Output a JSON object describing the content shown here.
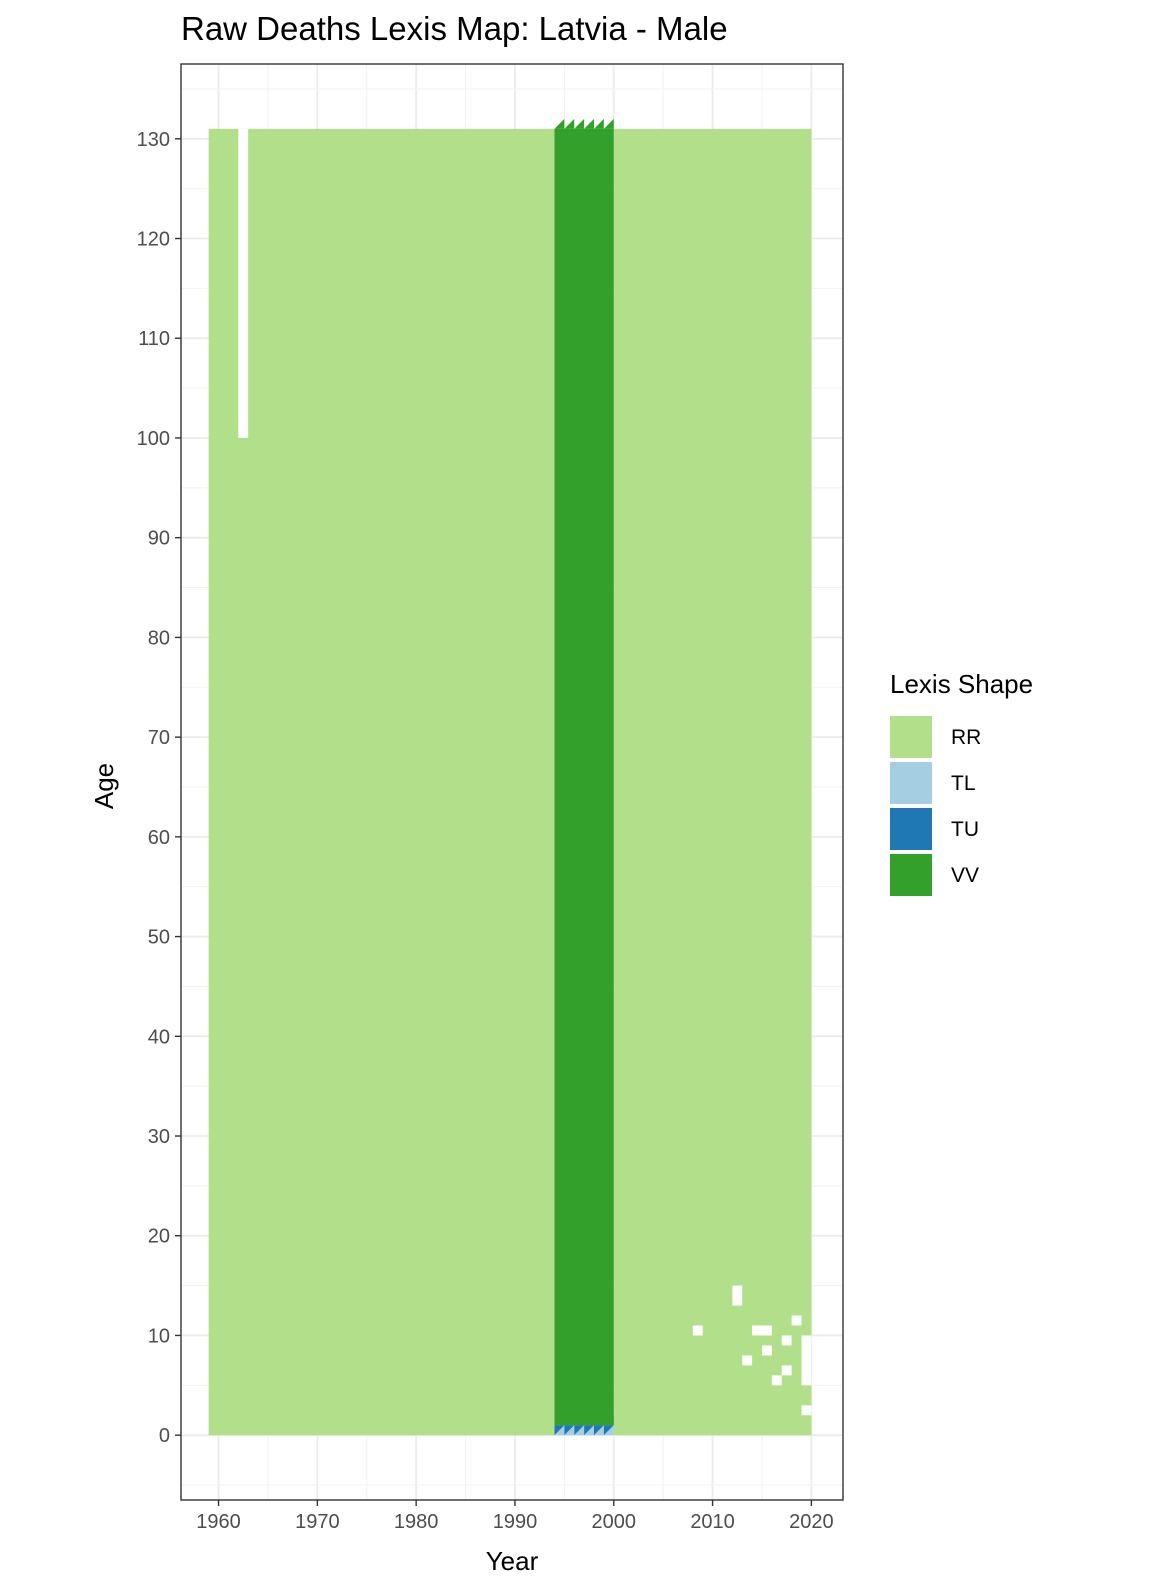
{
  "chart_data": {
    "type": "heatmap",
    "title": "Raw Deaths Lexis Map: Latvia - Male",
    "xlabel": "Year",
    "ylabel": "Age",
    "xlim": [
      1956.2,
      2023.2
    ],
    "ylim": [
      -6.5,
      137.5
    ],
    "x_ticks": [
      1960,
      1970,
      1980,
      1990,
      2000,
      2010,
      2020
    ],
    "y_ticks": [
      0,
      10,
      20,
      30,
      40,
      50,
      60,
      70,
      80,
      90,
      100,
      110,
      120,
      130
    ],
    "grid": true,
    "legend": {
      "title": "Lexis Shape",
      "position": "right",
      "entries": [
        {
          "key": "RR",
          "label": "RR",
          "color": "#b2df8a"
        },
        {
          "key": "TL",
          "label": "TL",
          "color": "#a6cee3"
        },
        {
          "key": "TU",
          "label": "TU",
          "color": "#1f78b4"
        },
        {
          "key": "VV",
          "label": "VV",
          "color": "#33a02c"
        }
      ]
    },
    "regions": [
      {
        "shape": "RR",
        "year_start": 1959,
        "year_end": 1994,
        "age_start": 0,
        "age_end": 131
      },
      {
        "shape": "RR",
        "year_start": 2000,
        "year_end": 2020,
        "age_start": 0,
        "age_end": 131
      },
      {
        "shape": "VV",
        "year_start": 1994,
        "year_end": 2000,
        "age_start": 1,
        "age_end": 131
      },
      {
        "shape": "TL",
        "year_start": 1994,
        "year_end": 2000,
        "age_start": 0,
        "age_end": 1
      },
      {
        "shape": "TU",
        "year_start": 1994,
        "year_end": 2000,
        "age_start": 0,
        "age_end": 1
      }
    ],
    "missing_cells": [
      {
        "year": 1962,
        "age_start": 100,
        "age_end": 131
      },
      {
        "year": 2008,
        "age_start": 10,
        "age_end": 11
      },
      {
        "year": 2012,
        "age_start": 13,
        "age_end": 15
      },
      {
        "year": 2013,
        "age_start": 7,
        "age_end": 8
      },
      {
        "year": 2014,
        "age_start": 10,
        "age_end": 11
      },
      {
        "year": 2015,
        "age_start": 10,
        "age_end": 11
      },
      {
        "year": 2015,
        "age_start": 8,
        "age_end": 9
      },
      {
        "year": 2016,
        "age_start": 5,
        "age_end": 6
      },
      {
        "year": 2017,
        "age_start": 9,
        "age_end": 10
      },
      {
        "year": 2017,
        "age_start": 6,
        "age_end": 7
      },
      {
        "year": 2018,
        "age_start": 11,
        "age_end": 12
      },
      {
        "year": 2019,
        "age_start": 5,
        "age_end": 10
      },
      {
        "year": 2019,
        "age_start": 2,
        "age_end": 3
      }
    ]
  }
}
